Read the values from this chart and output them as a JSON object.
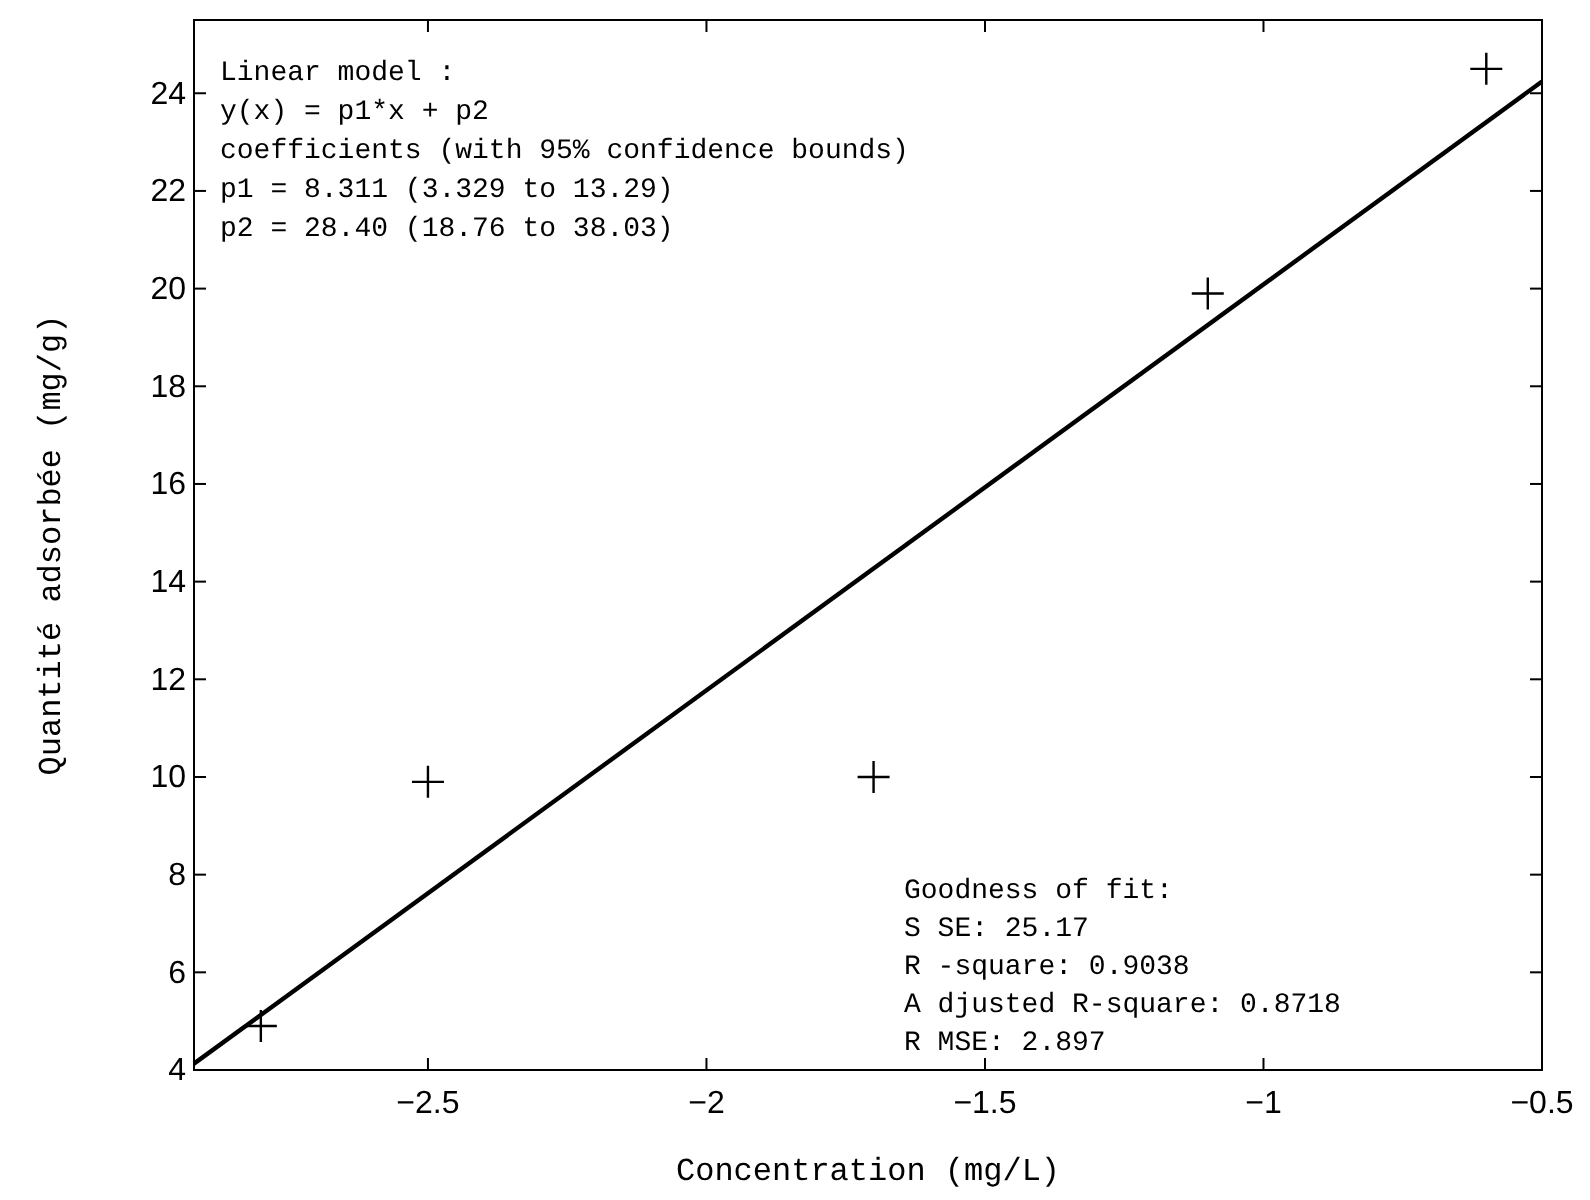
{
  "chart_data": {
    "type": "scatter",
    "xlabel": "Concentration (mg/L)",
    "ylabel": "Quantité adsorbée (mg/g)",
    "xlim": [
      -2.92,
      -0.5
    ],
    "xticks": [
      -2.5,
      -2,
      -1.5,
      -1,
      -0.5
    ],
    "ylim": [
      4,
      25.5
    ],
    "yticks": [
      4,
      6,
      8,
      10,
      12,
      14,
      16,
      18,
      20,
      22,
      24
    ],
    "grid": false,
    "marker": "cross",
    "series": [
      {
        "color": "#000000",
        "x": [
          -2.8,
          -2.5,
          -1.7,
          -1.1,
          -0.6
        ],
        "values": [
          4.9,
          9.9,
          10.0,
          19.9,
          24.5
        ]
      },
      {
        "type": "line",
        "color": "#000000",
        "line_style": "solid",
        "marker": "none",
        "x": [
          -2.92,
          -0.5
        ],
        "values": [
          4.13,
          24.24
        ]
      }
    ],
    "annotations": [
      "Linear model :",
      "y(x) = p1*x + p2",
      "coefficients (with 95% confidence bounds)",
      "p1 = 8.311 (3.329 to 13.29)",
      "p2 = 28.40 (18.76 to 38.03)",
      "Goodness of fit:",
      "S SE: 25.17",
      "R -square: 0.9038",
      "A djusted R-square: 0.8718",
      "R MSE: 2.897"
    ]
  }
}
